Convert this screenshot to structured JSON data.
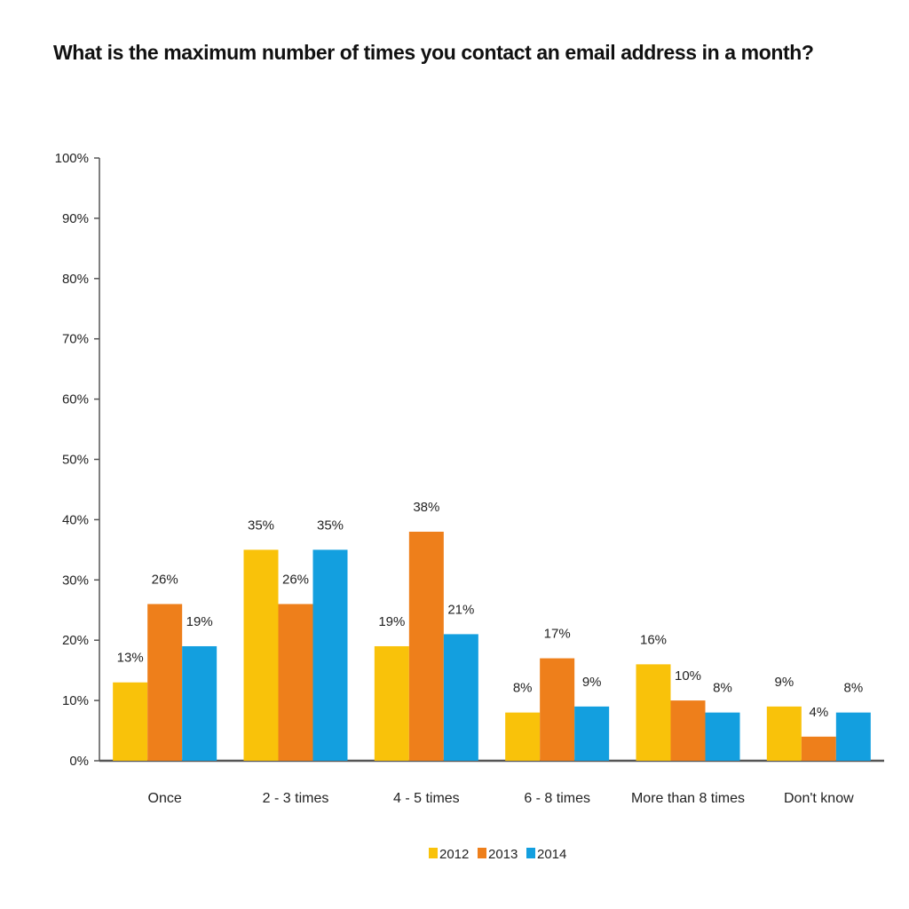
{
  "chart_data": {
    "type": "bar",
    "title": "What is the maximum number of times you contact an email address in a month?",
    "categories": [
      "Once",
      "2 - 3 times",
      "4 - 5 times",
      "6 - 8 times",
      "More than 8 times",
      "Don't know"
    ],
    "series": [
      {
        "name": "2012",
        "color": "#F9C20A",
        "values": [
          13,
          35,
          19,
          8,
          16,
          9
        ],
        "labels": [
          "13%",
          "35%",
          "19%",
          "8%",
          "16%",
          "9%"
        ]
      },
      {
        "name": "2013",
        "color": "#EE7F1B",
        "values": [
          26,
          26,
          38,
          17,
          10,
          4
        ],
        "labels": [
          "26%",
          "26%",
          "38%",
          "17%",
          "10%",
          "4%"
        ]
      },
      {
        "name": "2014",
        "color": "#139FDF",
        "values": [
          19,
          35,
          21,
          9,
          8,
          8
        ],
        "labels": [
          "19%",
          "35%",
          "21%",
          "9%",
          "8%",
          "8%"
        ]
      }
    ],
    "yticks": [
      0,
      10,
      20,
      30,
      40,
      50,
      60,
      70,
      80,
      90,
      100
    ],
    "ytick_labels": [
      "0%",
      "10%",
      "20%",
      "30%",
      "40%",
      "50%",
      "60%",
      "70%",
      "80%",
      "90%",
      "100%"
    ],
    "ylim": [
      0,
      100
    ],
    "xlabel": "",
    "ylabel": "",
    "grid": false,
    "legend": "bottom-center"
  }
}
